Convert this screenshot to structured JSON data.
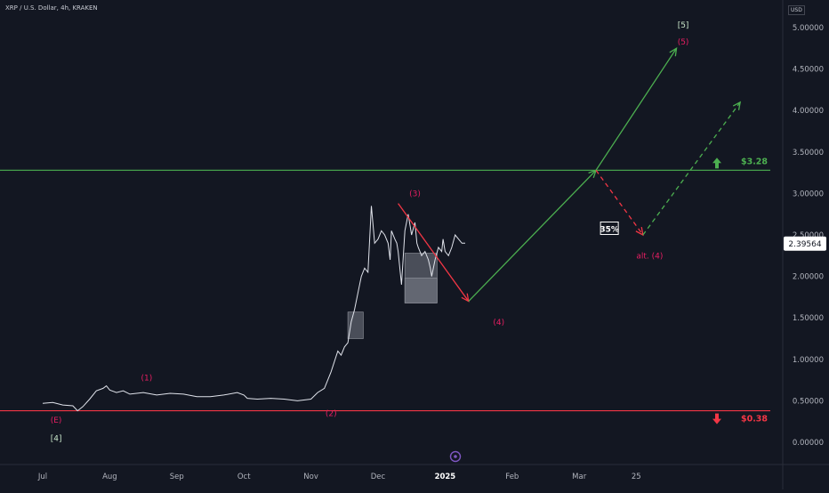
{
  "header": {
    "symbol": "XRP / U.S. Dollar, 4h, KRAKEN",
    "currency": "USD"
  },
  "chart_data": {
    "type": "line",
    "title": "",
    "xlabel": "",
    "ylabel": "",
    "ylim": [
      -0.25,
      5.3
    ],
    "y_ticks": [
      "0.00000",
      "0.50000",
      "1.00000",
      "1.50000",
      "2.00000",
      "2.50000",
      "3.00000",
      "3.50000",
      "4.00000",
      "4.50000",
      "5.00000"
    ],
    "x_ticks": [
      {
        "label": "Jul",
        "month": 0
      },
      {
        "label": "Aug",
        "month": 1
      },
      {
        "label": "Sep",
        "month": 2
      },
      {
        "label": "Oct",
        "month": 3
      },
      {
        "label": "Nov",
        "month": 4
      },
      {
        "label": "Dec",
        "month": 5
      },
      {
        "label": "2025",
        "month": 6
      },
      {
        "label": "Feb",
        "month": 7
      },
      {
        "label": "Mar",
        "month": 8
      },
      {
        "label": "25",
        "month": 8.85
      }
    ],
    "current_price": "2.39564",
    "series": [
      {
        "x": [
          0,
          0.15,
          0.3,
          0.45,
          0.52,
          0.6,
          0.7,
          0.8,
          0.9,
          0.95,
          1.0,
          1.1,
          1.2,
          1.3,
          1.5,
          1.7,
          1.9,
          2.1,
          2.3,
          2.5,
          2.7,
          2.9,
          3.0,
          3.05,
          3.2,
          3.4,
          3.6,
          3.8,
          4.0,
          4.1,
          4.2,
          4.3,
          4.4,
          4.45,
          4.5,
          4.55,
          4.6,
          4.65,
          4.7,
          4.75,
          4.8,
          4.85,
          4.9,
          4.95,
          5.0,
          5.05,
          5.1,
          5.15,
          5.18,
          5.2,
          5.25,
          5.28,
          5.3,
          5.35,
          5.4,
          5.45,
          5.5,
          5.55,
          5.58,
          5.6,
          5.65,
          5.7,
          5.75,
          5.78,
          5.8,
          5.85,
          5.9,
          5.95,
          5.97,
          6.0,
          6.05,
          6.1,
          6.15,
          6.2,
          6.25,
          6.3
        ],
        "values": [
          0.47,
          0.48,
          0.45,
          0.44,
          0.38,
          0.43,
          0.52,
          0.62,
          0.65,
          0.68,
          0.63,
          0.6,
          0.62,
          0.58,
          0.6,
          0.57,
          0.59,
          0.58,
          0.55,
          0.55,
          0.57,
          0.6,
          0.57,
          0.53,
          0.52,
          0.53,
          0.52,
          0.5,
          0.52,
          0.6,
          0.65,
          0.85,
          1.1,
          1.05,
          1.15,
          1.2,
          1.45,
          1.6,
          1.8,
          2.0,
          2.1,
          2.05,
          2.85,
          2.4,
          2.45,
          2.55,
          2.5,
          2.4,
          2.2,
          2.55,
          2.45,
          2.4,
          2.3,
          1.9,
          2.55,
          2.75,
          2.5,
          2.65,
          2.4,
          2.35,
          2.25,
          2.3,
          2.2,
          2.1,
          2.0,
          2.2,
          2.35,
          2.3,
          2.45,
          2.3,
          2.25,
          2.35,
          2.5,
          2.45,
          2.4,
          2.4
        ]
      }
    ],
    "horizontal_lines": [
      {
        "price": 3.28,
        "color": "#4caf50",
        "label": "$3.28"
      },
      {
        "price": 0.38,
        "color": "#f23645",
        "label": "$0.38"
      }
    ],
    "boxes": [
      {
        "x0": 4.55,
        "x1": 4.78,
        "y0": 1.25,
        "y1": 1.57
      },
      {
        "x0": 5.4,
        "x1": 5.88,
        "y0": 1.68,
        "y1": 2.28
      },
      {
        "x0": 5.4,
        "x1": 5.88,
        "y0": 1.68,
        "y1": 1.98
      }
    ],
    "wave_lines": [
      {
        "from": [
          5.3,
          2.88
        ],
        "to": [
          6.35,
          1.7
        ],
        "color": "#f23645",
        "style": "solid",
        "arrow": true
      },
      {
        "from": [
          6.35,
          1.7
        ],
        "to": [
          8.25,
          3.28
        ],
        "color": "#4caf50",
        "style": "solid",
        "arrow": true
      },
      {
        "from": [
          8.25,
          3.28
        ],
        "to": [
          9.45,
          4.75
        ],
        "color": "#4caf50",
        "style": "solid",
        "arrow": true
      },
      {
        "from": [
          8.25,
          3.28
        ],
        "to": [
          8.95,
          2.5
        ],
        "color": "#f23645",
        "style": "dashed",
        "arrow": true
      },
      {
        "from": [
          8.95,
          2.5
        ],
        "to": [
          10.4,
          4.1
        ],
        "color": "#4caf50",
        "style": "dashed",
        "arrow": true
      }
    ],
    "annotations": [
      {
        "text": "(E)",
        "x": 0.2,
        "y": 0.27,
        "color": "#e91e63"
      },
      {
        "text": "[4]",
        "x": 0.2,
        "y": 0.05,
        "color": "#c8e6c9"
      },
      {
        "text": "(1)",
        "x": 1.55,
        "y": 0.78,
        "color": "#e91e63"
      },
      {
        "text": "(2)",
        "x": 4.3,
        "y": 0.35,
        "color": "#e91e63"
      },
      {
        "text": "(3)",
        "x": 5.55,
        "y": 3.0,
        "color": "#e91e63"
      },
      {
        "text": "(4)",
        "x": 6.8,
        "y": 1.45,
        "color": "#e91e63"
      },
      {
        "text": "[5]",
        "x": 9.55,
        "y": 5.03,
        "color": "#c8e6c9"
      },
      {
        "text": "(5)",
        "x": 9.55,
        "y": 4.83,
        "color": "#e91e63"
      },
      {
        "text": "alt. (4)",
        "x": 9.05,
        "y": 2.25,
        "color": "#e91e63"
      },
      {
        "text": "35%",
        "x": 8.45,
        "y": 2.57,
        "color": "#ffffff",
        "boxed": true
      }
    ]
  }
}
